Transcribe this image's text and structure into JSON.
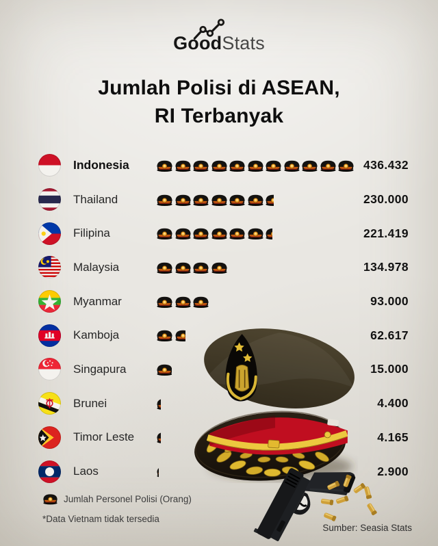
{
  "logo": {
    "bold": "Good",
    "light": "Stats"
  },
  "title": {
    "line1": "Jumlah Polisi di ASEAN,",
    "line2": "RI Terbanyak"
  },
  "rows": [
    {
      "country": "Indonesia",
      "value": "436.432",
      "flag": "indonesia",
      "units": 11,
      "highlight": true
    },
    {
      "country": "Thailand",
      "value": "230.000",
      "flag": "thailand",
      "units": 6.5,
      "highlight": false
    },
    {
      "country": "Filipina",
      "value": "221.419",
      "flag": "filipina",
      "units": 6.45,
      "highlight": false
    },
    {
      "country": "Malaysia",
      "value": "134.978",
      "flag": "malaysia",
      "units": 4,
      "highlight": false
    },
    {
      "country": "Myanmar",
      "value": "93.000",
      "flag": "myanmar",
      "units": 3,
      "highlight": false
    },
    {
      "country": "Kamboja",
      "value": "62.617",
      "flag": "kamboja",
      "units": 1.65,
      "highlight": false
    },
    {
      "country": "Singapura",
      "value": "15.000",
      "flag": "singapura",
      "units": 0.92,
      "highlight": false
    },
    {
      "country": "Brunei",
      "value": "4.400",
      "flag": "brunei",
      "units": 0.28,
      "highlight": false
    },
    {
      "country": "Timor Leste",
      "value": "4.165",
      "flag": "timor",
      "units": 0.28,
      "highlight": false
    },
    {
      "country": "Laos",
      "value": "2.900",
      "flag": "laos",
      "units": 0.17,
      "highlight": false
    }
  ],
  "footer": {
    "legend": "Jumlah Personel Polisi (Orang)",
    "note": "*Data Vietnam tidak tersedia",
    "source": "Sumber: Seasia Stats"
  },
  "colors": {
    "background": "#e9e7e2",
    "text": "#141414",
    "cap_gold": "#f0a32a",
    "hat_red": "#c00e20",
    "hat_gold": "#e2bd32"
  },
  "chart_data": {
    "type": "bar",
    "subtype": "pictogram",
    "title": "Jumlah Polisi di ASEAN, RI Terbanyak",
    "legend": "Jumlah Personel Polisi (Orang)",
    "note": "*Data Vietnam tidak tersedia",
    "source": "Sumber: Seasia Stats",
    "unit": "Orang",
    "icon": "police-cap",
    "categories": [
      "Indonesia",
      "Thailand",
      "Filipina",
      "Malaysia",
      "Myanmar",
      "Kamboja",
      "Singapura",
      "Brunei",
      "Timor Leste",
      "Laos"
    ],
    "values": [
      436432,
      230000,
      221419,
      134978,
      93000,
      62617,
      15000,
      4400,
      4165,
      2900
    ],
    "display_values": [
      "436.432",
      "230.000",
      "221.419",
      "134.978",
      "93.000",
      "62.617",
      "15.000",
      "4.400",
      "4.165",
      "2.900"
    ],
    "icon_units": [
      11,
      6.5,
      6.45,
      4,
      3,
      1.65,
      0.92,
      0.28,
      0.28,
      0.17
    ]
  }
}
